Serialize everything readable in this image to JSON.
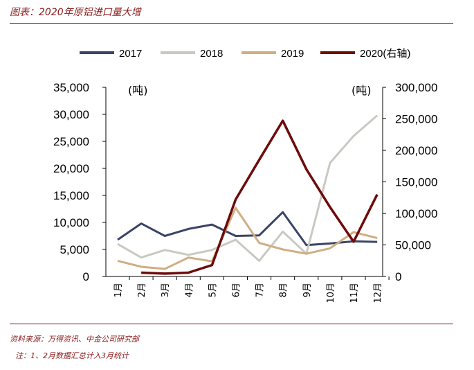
{
  "title": "图表：2020年原铝进口量大增",
  "source": "资料来源：万得资讯、中金公司研究部",
  "note": "注：1、2月数据汇总计入3月统计",
  "colors": {
    "2017": "#3a4466",
    "2018": "#c9c9c2",
    "2019": "#cfae83",
    "2020": "#6e0b0b",
    "accent": "#8b1a1a"
  },
  "chart_data": {
    "type": "line",
    "categories": [
      "1月",
      "2月",
      "3月",
      "4月",
      "5月",
      "6月",
      "7月",
      "8月",
      "9月",
      "10月",
      "11月",
      "12月"
    ],
    "series": [
      {
        "name": "2017",
        "axis": "left",
        "values": [
          6800,
          9800,
          7500,
          8800,
          9600,
          7500,
          7600,
          11900,
          5800,
          6100,
          6500,
          6400
        ]
      },
      {
        "name": "2018",
        "axis": "left",
        "values": [
          6000,
          3500,
          4900,
          4000,
          4900,
          6800,
          2900,
          8300,
          4200,
          21000,
          26000,
          29800
        ]
      },
      {
        "name": "2019",
        "axis": "left",
        "values": [
          2900,
          1800,
          1400,
          3500,
          2800,
          12700,
          6200,
          5000,
          4200,
          5200,
          8200,
          7100
        ]
      },
      {
        "name": "2020(右轴)",
        "axis": "right",
        "values": [
          null,
          6000,
          4500,
          6000,
          18000,
          122000,
          185000,
          247000,
          170000,
          110000,
          55000,
          130000
        ]
      }
    ],
    "left_axis": {
      "ylim": [
        0,
        35000
      ],
      "ticks": [
        "0",
        "5,000",
        "10,000",
        "15,000",
        "20,000",
        "25,000",
        "30,000",
        "35,000"
      ],
      "unit": "(吨)"
    },
    "right_axis": {
      "ylim": [
        0,
        300000
      ],
      "ticks": [
        "0",
        "50,000",
        "100,000",
        "150,000",
        "200,000",
        "250,000",
        "300,000"
      ],
      "unit": "(吨)"
    },
    "legend_position": "top",
    "grid": false
  }
}
